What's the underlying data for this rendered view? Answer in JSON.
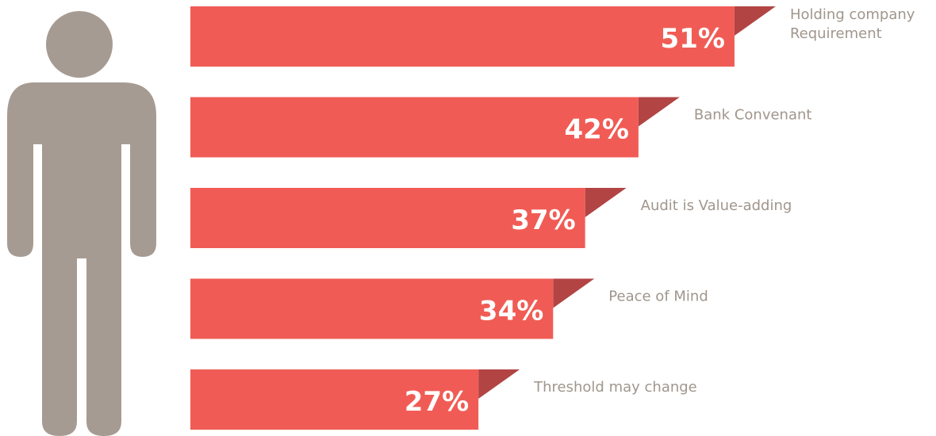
{
  "colors": {
    "bar": "#f05c55",
    "fold": "#b24444",
    "figure": "#a69b92",
    "category_text": "#a0968c",
    "value_text": "#ffffff"
  },
  "figure_icon": "person-icon",
  "chart_data": {
    "type": "bar",
    "orientation": "horizontal",
    "categories": [
      "Holding company Requirement",
      "Bank Convenant",
      "Audit is Value-adding",
      "Peace of Mind",
      "Threshold may change"
    ],
    "category_lines": [
      [
        "Holding company",
        "Requirement"
      ],
      [
        "Bank Convenant"
      ],
      [
        "Audit is Value-adding"
      ],
      [
        "Peace of Mind"
      ],
      [
        "Threshold may change"
      ]
    ],
    "values": [
      51,
      42,
      37,
      34,
      27
    ],
    "value_labels": [
      "51%",
      "42%",
      "37%",
      "34%",
      "27%"
    ],
    "unit": "%",
    "title": "",
    "xlabel": "",
    "ylabel": "",
    "grid": false,
    "legend": "none"
  }
}
